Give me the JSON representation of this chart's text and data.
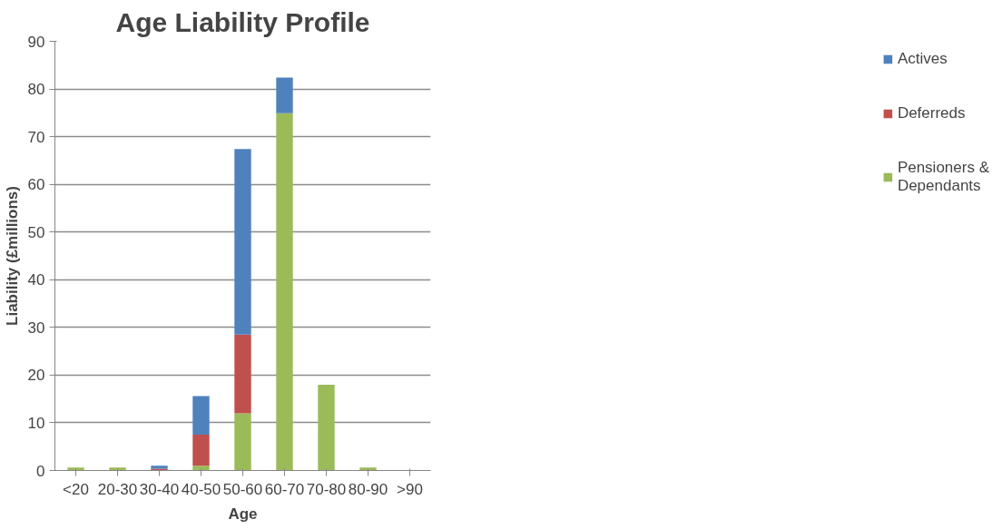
{
  "chart_data": {
    "type": "bar",
    "title": "Age Liability Profile",
    "xlabel": "Age",
    "ylabel": "Liability (£millions)",
    "categories": [
      "<20",
      "20-30",
      "30-40",
      "40-50",
      "50-60",
      "60-70",
      "70-80",
      "80-90",
      ">90"
    ],
    "stacked": true,
    "series": [
      {
        "name": "Pensioners & Dependants",
        "color": "#9bbb59",
        "values": [
          0.6,
          0.6,
          0,
          1.0,
          12.0,
          74.9,
          18.0,
          0.6,
          0
        ]
      },
      {
        "name": "Deferreds",
        "color": "#c0504d",
        "values": [
          0,
          0,
          0.4,
          6.5,
          16.5,
          0,
          0,
          0,
          0
        ]
      },
      {
        "name": "Actives",
        "color": "#4f81bd",
        "values": [
          0,
          0,
          0.6,
          8.1,
          38.9,
          7.5,
          0,
          0,
          0
        ]
      }
    ],
    "ylim": [
      0,
      90
    ],
    "yticks": [
      0,
      10,
      20,
      30,
      40,
      50,
      60,
      70,
      80,
      90
    ],
    "grid": "y",
    "legend": "right"
  }
}
